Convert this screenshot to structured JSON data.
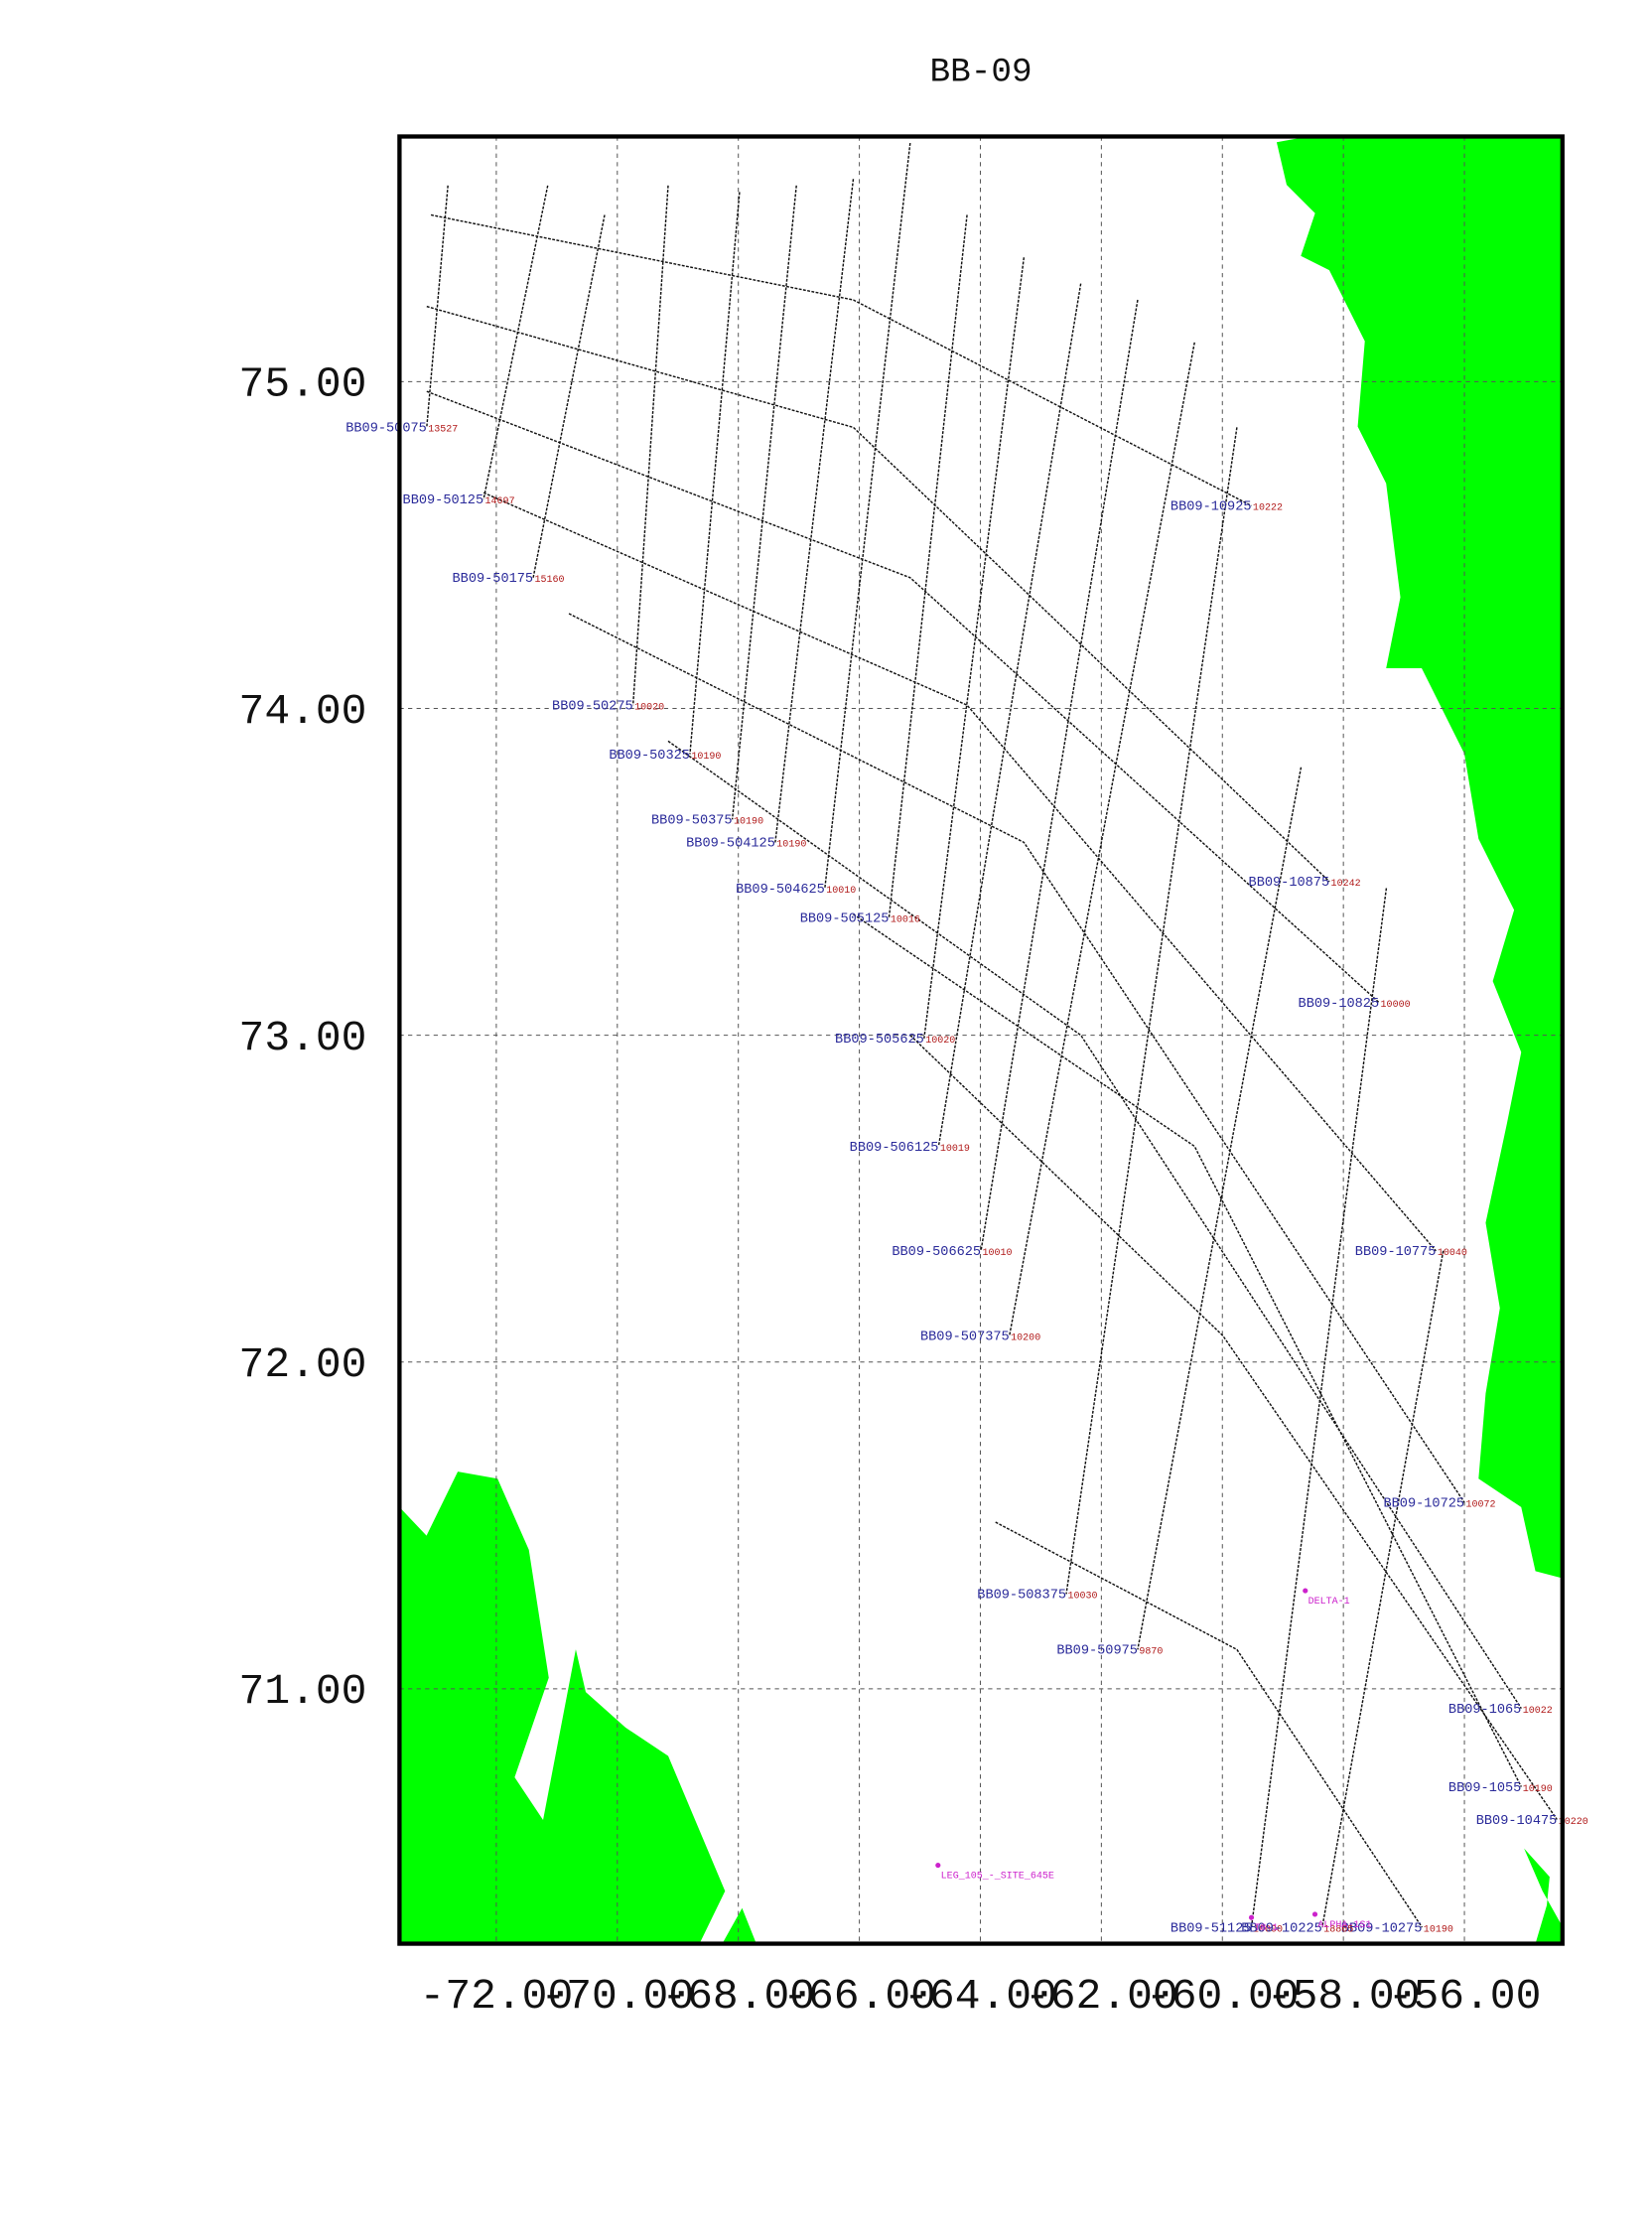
{
  "chart_data": {
    "type": "map",
    "title": "BB-09",
    "xlim": [
      -73.6,
      -54.38
    ],
    "ylim": [
      70.22,
      75.75
    ],
    "xticks": [
      {
        "value": -72,
        "label": "-72.00"
      },
      {
        "value": -70,
        "label": "-70.00"
      },
      {
        "value": -68,
        "label": "-68.00"
      },
      {
        "value": -66,
        "label": "-66.00"
      },
      {
        "value": -64,
        "label": "-64.00"
      },
      {
        "value": -62,
        "label": "-62.00"
      },
      {
        "value": -60,
        "label": "-60.00"
      },
      {
        "value": -58,
        "label": "-58.00"
      },
      {
        "value": -56,
        "label": "-56.00"
      }
    ],
    "yticks": [
      {
        "value": 71,
        "label": "71.00"
      },
      {
        "value": 72,
        "label": "72.00"
      },
      {
        "value": 73,
        "label": "73.00"
      },
      {
        "value": 74,
        "label": "74.00"
      },
      {
        "value": 75,
        "label": "75.00"
      }
    ],
    "grid": true,
    "land_color": "#00ff00",
    "line_color": "#111111",
    "series": [
      {
        "name": "BB09-10925",
        "shot": 10222,
        "x": [
          -73.08,
          -66.1,
          -59.52
        ],
        "y": [
          75.51,
          75.25,
          74.62
        ]
      },
      {
        "name": "BB09-10875",
        "shot": 10242,
        "x": [
          -73.15,
          -66.1,
          -58.23
        ],
        "y": [
          75.23,
          74.86,
          73.47
        ]
      },
      {
        "name": "BB09-10825",
        "shot": 10000,
        "x": [
          -73.15,
          -65.16,
          -57.41
        ],
        "y": [
          74.97,
          74.4,
          73.1
        ]
      },
      {
        "name": "BB09-10775",
        "shot": 10040,
        "x": [
          -72.21,
          -64.22,
          -56.47
        ],
        "y": [
          74.66,
          74.01,
          72.34
        ]
      },
      {
        "name": "BB09-10725",
        "shot": 10072,
        "x": [
          -70.8,
          -63.28,
          -56.0
        ],
        "y": [
          74.29,
          73.59,
          71.57
        ]
      },
      {
        "name": "BB09-1065",
        "shot": 10022,
        "x": [
          -69.16,
          -62.34,
          -55.06
        ],
        "y": [
          73.9,
          73.0,
          70.94
        ]
      },
      {
        "name": "BB09-1055",
        "shot": 10190,
        "x": [
          -66.1,
          -60.46,
          -55.06
        ],
        "y": [
          73.37,
          72.66,
          70.7
        ]
      },
      {
        "name": "BB09-10475",
        "shot": 10220,
        "x": [
          -65.16,
          -59.99,
          -54.47
        ],
        "y": [
          73.0,
          72.08,
          70.6
        ]
      },
      {
        "name": "BB09-10275",
        "shot": 10190,
        "x": [
          -63.75,
          -59.76,
          -56.7
        ],
        "y": [
          71.51,
          71.12,
          70.27
        ]
      },
      {
        "name": "BB09-50075",
        "shot": 13527,
        "x": [
          -72.8,
          -73.15
        ],
        "y": [
          75.6,
          74.86
        ]
      },
      {
        "name": "BB09-50125",
        "shot": 14697,
        "x": [
          -71.15,
          -72.21
        ],
        "y": [
          75.6,
          74.64
        ]
      },
      {
        "name": "BB09-50175",
        "shot": 15160,
        "x": [
          -70.21,
          -71.39
        ],
        "y": [
          75.51,
          74.4
        ]
      },
      {
        "name": "BB09-50275",
        "shot": 10020,
        "x": [
          -69.16,
          -69.74
        ],
        "y": [
          75.6,
          74.01
        ]
      },
      {
        "name": "BB09-50325",
        "shot": 10190,
        "x": [
          -67.98,
          -68.8
        ],
        "y": [
          75.58,
          73.86
        ]
      },
      {
        "name": "BB09-50375",
        "shot": 10190,
        "x": [
          -67.04,
          -68.1
        ],
        "y": [
          75.6,
          73.66
        ]
      },
      {
        "name": "BB09-504125",
        "shot": 10190,
        "x": [
          -66.1,
          -67.39
        ],
        "y": [
          75.62,
          73.59
        ]
      },
      {
        "name": "BB09-504625",
        "shot": 10010,
        "x": [
          -65.16,
          -66.57
        ],
        "y": [
          75.73,
          73.45
        ]
      },
      {
        "name": "BB09-505125",
        "shot": 10016,
        "x": [
          -64.22,
          -65.51
        ],
        "y": [
          75.51,
          73.36
        ]
      },
      {
        "name": "BB09-505625",
        "shot": 10020,
        "x": [
          -63.28,
          -64.93
        ],
        "y": [
          75.38,
          72.99
        ]
      },
      {
        "name": "BB09-506125",
        "shot": 10019,
        "x": [
          -62.34,
          -64.69
        ],
        "y": [
          75.3,
          72.66
        ]
      },
      {
        "name": "BB09-506625",
        "shot": 10010,
        "x": [
          -61.4,
          -63.99
        ],
        "y": [
          75.25,
          72.34
        ]
      },
      {
        "name": "BB09-507375",
        "shot": 10200,
        "x": [
          -60.46,
          -63.52
        ],
        "y": [
          75.12,
          72.08
        ]
      },
      {
        "name": "BB09-508375",
        "shot": 10030,
        "x": [
          -59.76,
          -62.58
        ],
        "y": [
          74.86,
          71.29
        ]
      },
      {
        "name": "BB09-50975",
        "shot": 9870,
        "x": [
          -58.7,
          -61.4
        ],
        "y": [
          73.82,
          71.12
        ]
      },
      {
        "name": "BB09-51125",
        "shot": 10000,
        "x": [
          -57.29,
          -59.52
        ],
        "y": [
          73.45,
          70.27
        ]
      },
      {
        "name": "BB09-10225",
        "shot": 18865,
        "x": [
          -56.35,
          -58.35
        ],
        "y": [
          72.34,
          70.27
        ]
      }
    ],
    "sites": [
      {
        "name": "LEG_105_-_SITE_645E",
        "x": -64.7,
        "y": 70.46
      },
      {
        "name": "DELTA-1",
        "x": -58.63,
        "y": 71.3
      },
      {
        "name": "T8-1",
        "x": -59.52,
        "y": 70.3
      },
      {
        "name": "ALPHA-1S1",
        "x": -58.47,
        "y": 70.31
      }
    ]
  }
}
